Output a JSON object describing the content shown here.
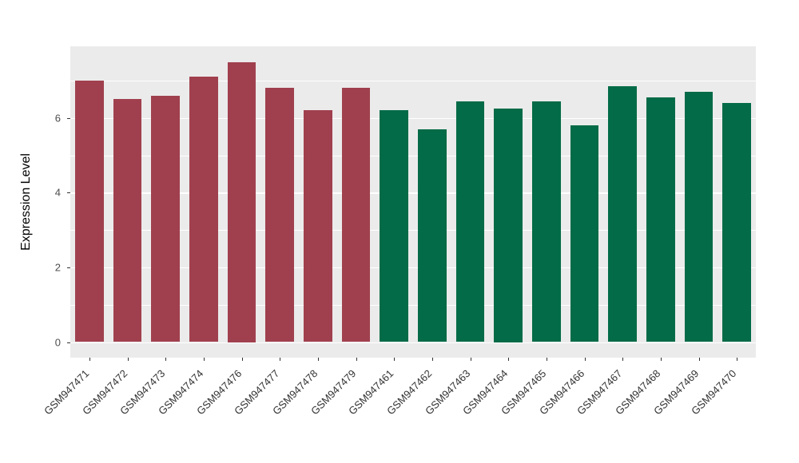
{
  "chart_data": {
    "type": "bar",
    "title": "",
    "xlabel": "",
    "ylabel": "Expression Level",
    "ylim": [
      0,
      7.5
    ],
    "yticks": [
      0,
      2,
      4,
      6
    ],
    "yticks_minor": [
      1,
      3,
      5,
      7
    ],
    "legend": "none",
    "grid": "on",
    "colors": {
      "panel_bg": "#EBEBEB",
      "grid": "#FFFFFF",
      "group1": "#A0404E",
      "group2": "#036B47"
    },
    "bars": [
      {
        "label": "GSM947471",
        "value": 7.0,
        "group": "group1",
        "color": "#A0404E"
      },
      {
        "label": "GSM947472",
        "value": 6.5,
        "group": "group1",
        "color": "#A0404E"
      },
      {
        "label": "GSM947473",
        "value": 6.6,
        "group": "group1",
        "color": "#A0404E"
      },
      {
        "label": "GSM947474",
        "value": 7.1,
        "group": "group1",
        "color": "#A0404E"
      },
      {
        "label": "GSM947476",
        "value": 7.5,
        "group": "group1",
        "color": "#A0404E"
      },
      {
        "label": "GSM947477",
        "value": 6.8,
        "group": "group1",
        "color": "#A0404E"
      },
      {
        "label": "GSM947478",
        "value": 6.2,
        "group": "group1",
        "color": "#A0404E"
      },
      {
        "label": "GSM947479",
        "value": 6.8,
        "group": "group1",
        "color": "#A0404E"
      },
      {
        "label": "GSM947461",
        "value": 6.2,
        "group": "group2",
        "color": "#036B47"
      },
      {
        "label": "GSM947462",
        "value": 5.7,
        "group": "group2",
        "color": "#036B47"
      },
      {
        "label": "GSM947463",
        "value": 6.45,
        "group": "group2",
        "color": "#036B47"
      },
      {
        "label": "GSM947464",
        "value": 6.25,
        "group": "group2",
        "color": "#036B47"
      },
      {
        "label": "GSM947465",
        "value": 6.45,
        "group": "group2",
        "color": "#036B47"
      },
      {
        "label": "GSM947466",
        "value": 5.8,
        "group": "group2",
        "color": "#036B47"
      },
      {
        "label": "GSM947467",
        "value": 6.85,
        "group": "group2",
        "color": "#036B47"
      },
      {
        "label": "GSM947468",
        "value": 6.55,
        "group": "group2",
        "color": "#036B47"
      },
      {
        "label": "GSM947469",
        "value": 6.7,
        "group": "group2",
        "color": "#036B47"
      },
      {
        "label": "GSM947470",
        "value": 6.4,
        "group": "group2",
        "color": "#036B47"
      }
    ]
  }
}
